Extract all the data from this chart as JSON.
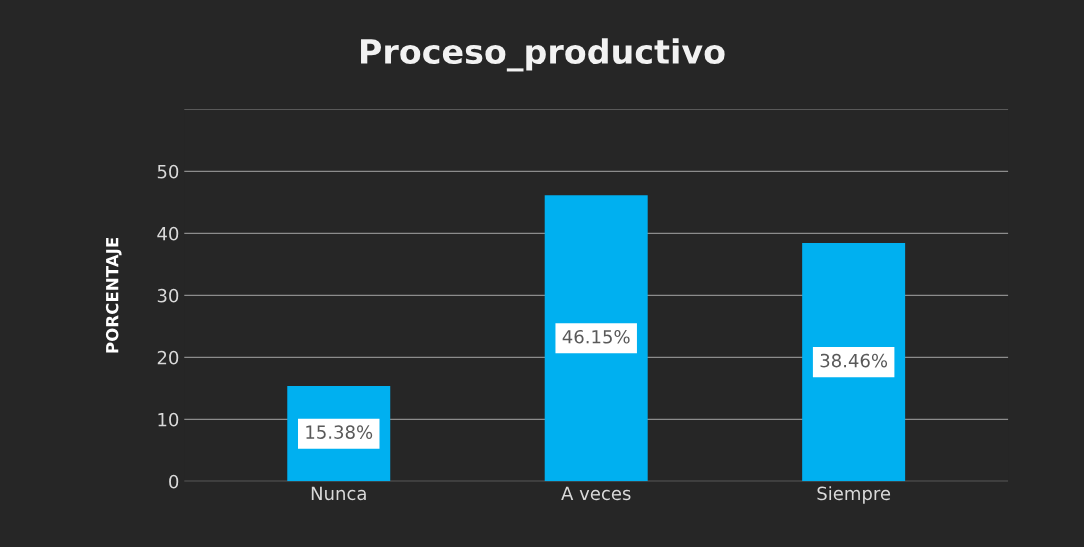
{
  "chart_data": {
    "type": "bar",
    "title": "Proceso_productivo",
    "ylabel": "PORCENTAJE",
    "categories": [
      "Nunca",
      "A veces",
      "Siempre"
    ],
    "values": [
      15.38,
      46.15,
      38.46
    ],
    "value_labels": [
      "15.38%",
      "46.15%",
      "38.46%"
    ],
    "color": "#00b0f0",
    "ylim": [
      0,
      60
    ],
    "yticks": [
      0,
      10,
      20,
      30,
      40,
      50,
      {
        "value": 60,
        "label": null
      }
    ],
    "grid": "y"
  }
}
